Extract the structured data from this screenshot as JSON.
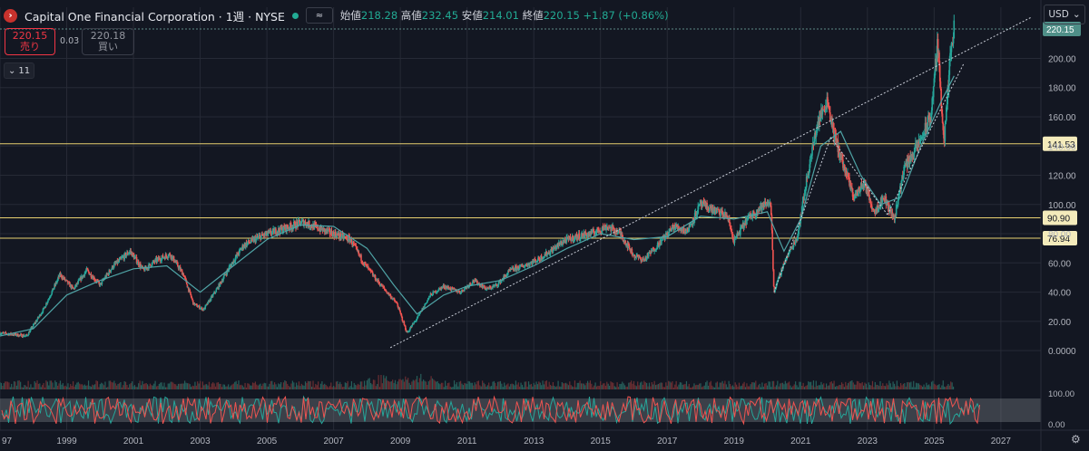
{
  "header": {
    "title": "Capital One Financial Corporation · 1週 · NYSE",
    "eye_label": "≈",
    "ohlc": [
      {
        "label": "始値",
        "value": "218.28"
      },
      {
        "label": "高値",
        "value": "232.45"
      },
      {
        "label": "安値",
        "value": "214.01"
      },
      {
        "label": "終値",
        "value": "220.15"
      }
    ],
    "change": "+1.87 (+0.86%)"
  },
  "trade": {
    "sell_price": "220.15",
    "sell_label": "売り",
    "spread": "0.03",
    "buy_price": "220.18",
    "buy_label": "買い"
  },
  "indicator_toggle": "11",
  "currency": "USD",
  "colors": {
    "background": "#131722",
    "grid": "#262a36",
    "up": "#26a69a",
    "down": "#ef5350",
    "hline": "#e8d070",
    "ma": "#4fa3a5"
  },
  "chart_data": {
    "type": "candlestick",
    "x_ticks": [
      "97",
      "1999",
      "2001",
      "2003",
      "2005",
      "2007",
      "2009",
      "2011",
      "2013",
      "2015",
      "2017",
      "2019",
      "2021",
      "2023",
      "2025",
      "2027"
    ],
    "y_ticks": [
      "0.0000",
      "20.00",
      "40.00",
      "60.00",
      "80.00",
      "100.00",
      "120.00",
      "140.00",
      "160.00",
      "180.00",
      "200.00"
    ],
    "ylim": [
      -8,
      235
    ],
    "xlim": [
      1997,
      2028.2
    ],
    "price_path": [
      [
        1997.0,
        12
      ],
      [
        1997.8,
        10
      ],
      [
        1998.3,
        28
      ],
      [
        1998.8,
        52
      ],
      [
        1999.2,
        42
      ],
      [
        1999.6,
        55
      ],
      [
        2000.0,
        45
      ],
      [
        2000.4,
        58
      ],
      [
        2000.9,
        68
      ],
      [
        2001.3,
        55
      ],
      [
        2001.7,
        62
      ],
      [
        2002.1,
        66
      ],
      [
        2002.5,
        52
      ],
      [
        2002.8,
        32
      ],
      [
        2003.1,
        28
      ],
      [
        2003.5,
        42
      ],
      [
        2003.9,
        58
      ],
      [
        2004.3,
        72
      ],
      [
        2004.8,
        78
      ],
      [
        2005.3,
        82
      ],
      [
        2005.7,
        85
      ],
      [
        2006.1,
        88
      ],
      [
        2006.5,
        84
      ],
      [
        2007.0,
        80
      ],
      [
        2007.5,
        76
      ],
      [
        2007.9,
        60
      ],
      [
        2008.3,
        48
      ],
      [
        2008.6,
        40
      ],
      [
        2008.9,
        32
      ],
      [
        2009.2,
        12
      ],
      [
        2009.5,
        22
      ],
      [
        2009.9,
        38
      ],
      [
        2010.3,
        44
      ],
      [
        2010.8,
        40
      ],
      [
        2011.2,
        48
      ],
      [
        2011.6,
        42
      ],
      [
        2011.9,
        45
      ],
      [
        2012.3,
        55
      ],
      [
        2012.7,
        58
      ],
      [
        2013.1,
        62
      ],
      [
        2013.5,
        68
      ],
      [
        2013.9,
        75
      ],
      [
        2014.3,
        78
      ],
      [
        2014.7,
        80
      ],
      [
        2015.2,
        85
      ],
      [
        2015.6,
        80
      ],
      [
        2016.0,
        65
      ],
      [
        2016.3,
        62
      ],
      [
        2016.7,
        72
      ],
      [
        2017.2,
        85
      ],
      [
        2017.6,
        82
      ],
      [
        2018.0,
        100
      ],
      [
        2018.4,
        96
      ],
      [
        2018.8,
        92
      ],
      [
        2019.0,
        75
      ],
      [
        2019.4,
        90
      ],
      [
        2019.8,
        98
      ],
      [
        2020.1,
        102
      ],
      [
        2020.2,
        40
      ],
      [
        2020.5,
        60
      ],
      [
        2020.9,
        78
      ],
      [
        2021.2,
        120
      ],
      [
        2021.5,
        155
      ],
      [
        2021.8,
        172
      ],
      [
        2022.0,
        148
      ],
      [
        2022.3,
        125
      ],
      [
        2022.6,
        105
      ],
      [
        2022.9,
        115
      ],
      [
        2023.2,
        95
      ],
      [
        2023.5,
        105
      ],
      [
        2023.8,
        90
      ],
      [
        2024.1,
        125
      ],
      [
        2024.5,
        140
      ],
      [
        2024.9,
        160
      ],
      [
        2025.1,
        210
      ],
      [
        2025.3,
        142
      ],
      [
        2025.5,
        205
      ],
      [
        2025.6,
        220.15
      ]
    ],
    "ma_path": [
      [
        1997.0,
        10
      ],
      [
        1998.0,
        15
      ],
      [
        1999.0,
        38
      ],
      [
        2000.0,
        48
      ],
      [
        2001.0,
        56
      ],
      [
        2002.0,
        58
      ],
      [
        2003.0,
        40
      ],
      [
        2004.0,
        58
      ],
      [
        2005.0,
        76
      ],
      [
        2006.0,
        86
      ],
      [
        2007.0,
        85
      ],
      [
        2008.0,
        70
      ],
      [
        2008.8,
        45
      ],
      [
        2009.5,
        25
      ],
      [
        2010.3,
        38
      ],
      [
        2011.0,
        44
      ],
      [
        2012.0,
        48
      ],
      [
        2013.0,
        58
      ],
      [
        2014.0,
        70
      ],
      [
        2015.0,
        80
      ],
      [
        2016.0,
        76
      ],
      [
        2017.0,
        78
      ],
      [
        2018.0,
        92
      ],
      [
        2019.0,
        90
      ],
      [
        2020.0,
        95
      ],
      [
        2020.5,
        68
      ],
      [
        2021.0,
        90
      ],
      [
        2021.6,
        140
      ],
      [
        2022.2,
        150
      ],
      [
        2022.8,
        120
      ],
      [
        2023.4,
        100
      ],
      [
        2024.0,
        105
      ],
      [
        2024.6,
        140
      ],
      [
        2025.2,
        170
      ],
      [
        2025.6,
        188
      ]
    ],
    "hlines": [
      {
        "value": 141.53,
        "label": "141.53"
      },
      {
        "value": 90.9,
        "label": "90.90"
      },
      {
        "value": 76.94,
        "label": "76.94"
      }
    ],
    "current_price": {
      "value": 220.15,
      "label": "220.15"
    },
    "trendlines": [
      {
        "from": [
          2008.7,
          2
        ],
        "to": [
          2027.9,
          228
        ]
      },
      {
        "from": [
          2020.2,
          40
        ],
        "to": [
          2021.9,
          146
        ]
      },
      {
        "from": [
          2021.9,
          146
        ],
        "to": [
          2023.6,
          93
        ]
      },
      {
        "from": [
          2023.6,
          93
        ],
        "to": [
          2025.9,
          197
        ]
      }
    ],
    "oscillator": {
      "y_ticks": [
        "100.00",
        "0.00"
      ],
      "ylim": [
        0,
        100
      ]
    }
  }
}
